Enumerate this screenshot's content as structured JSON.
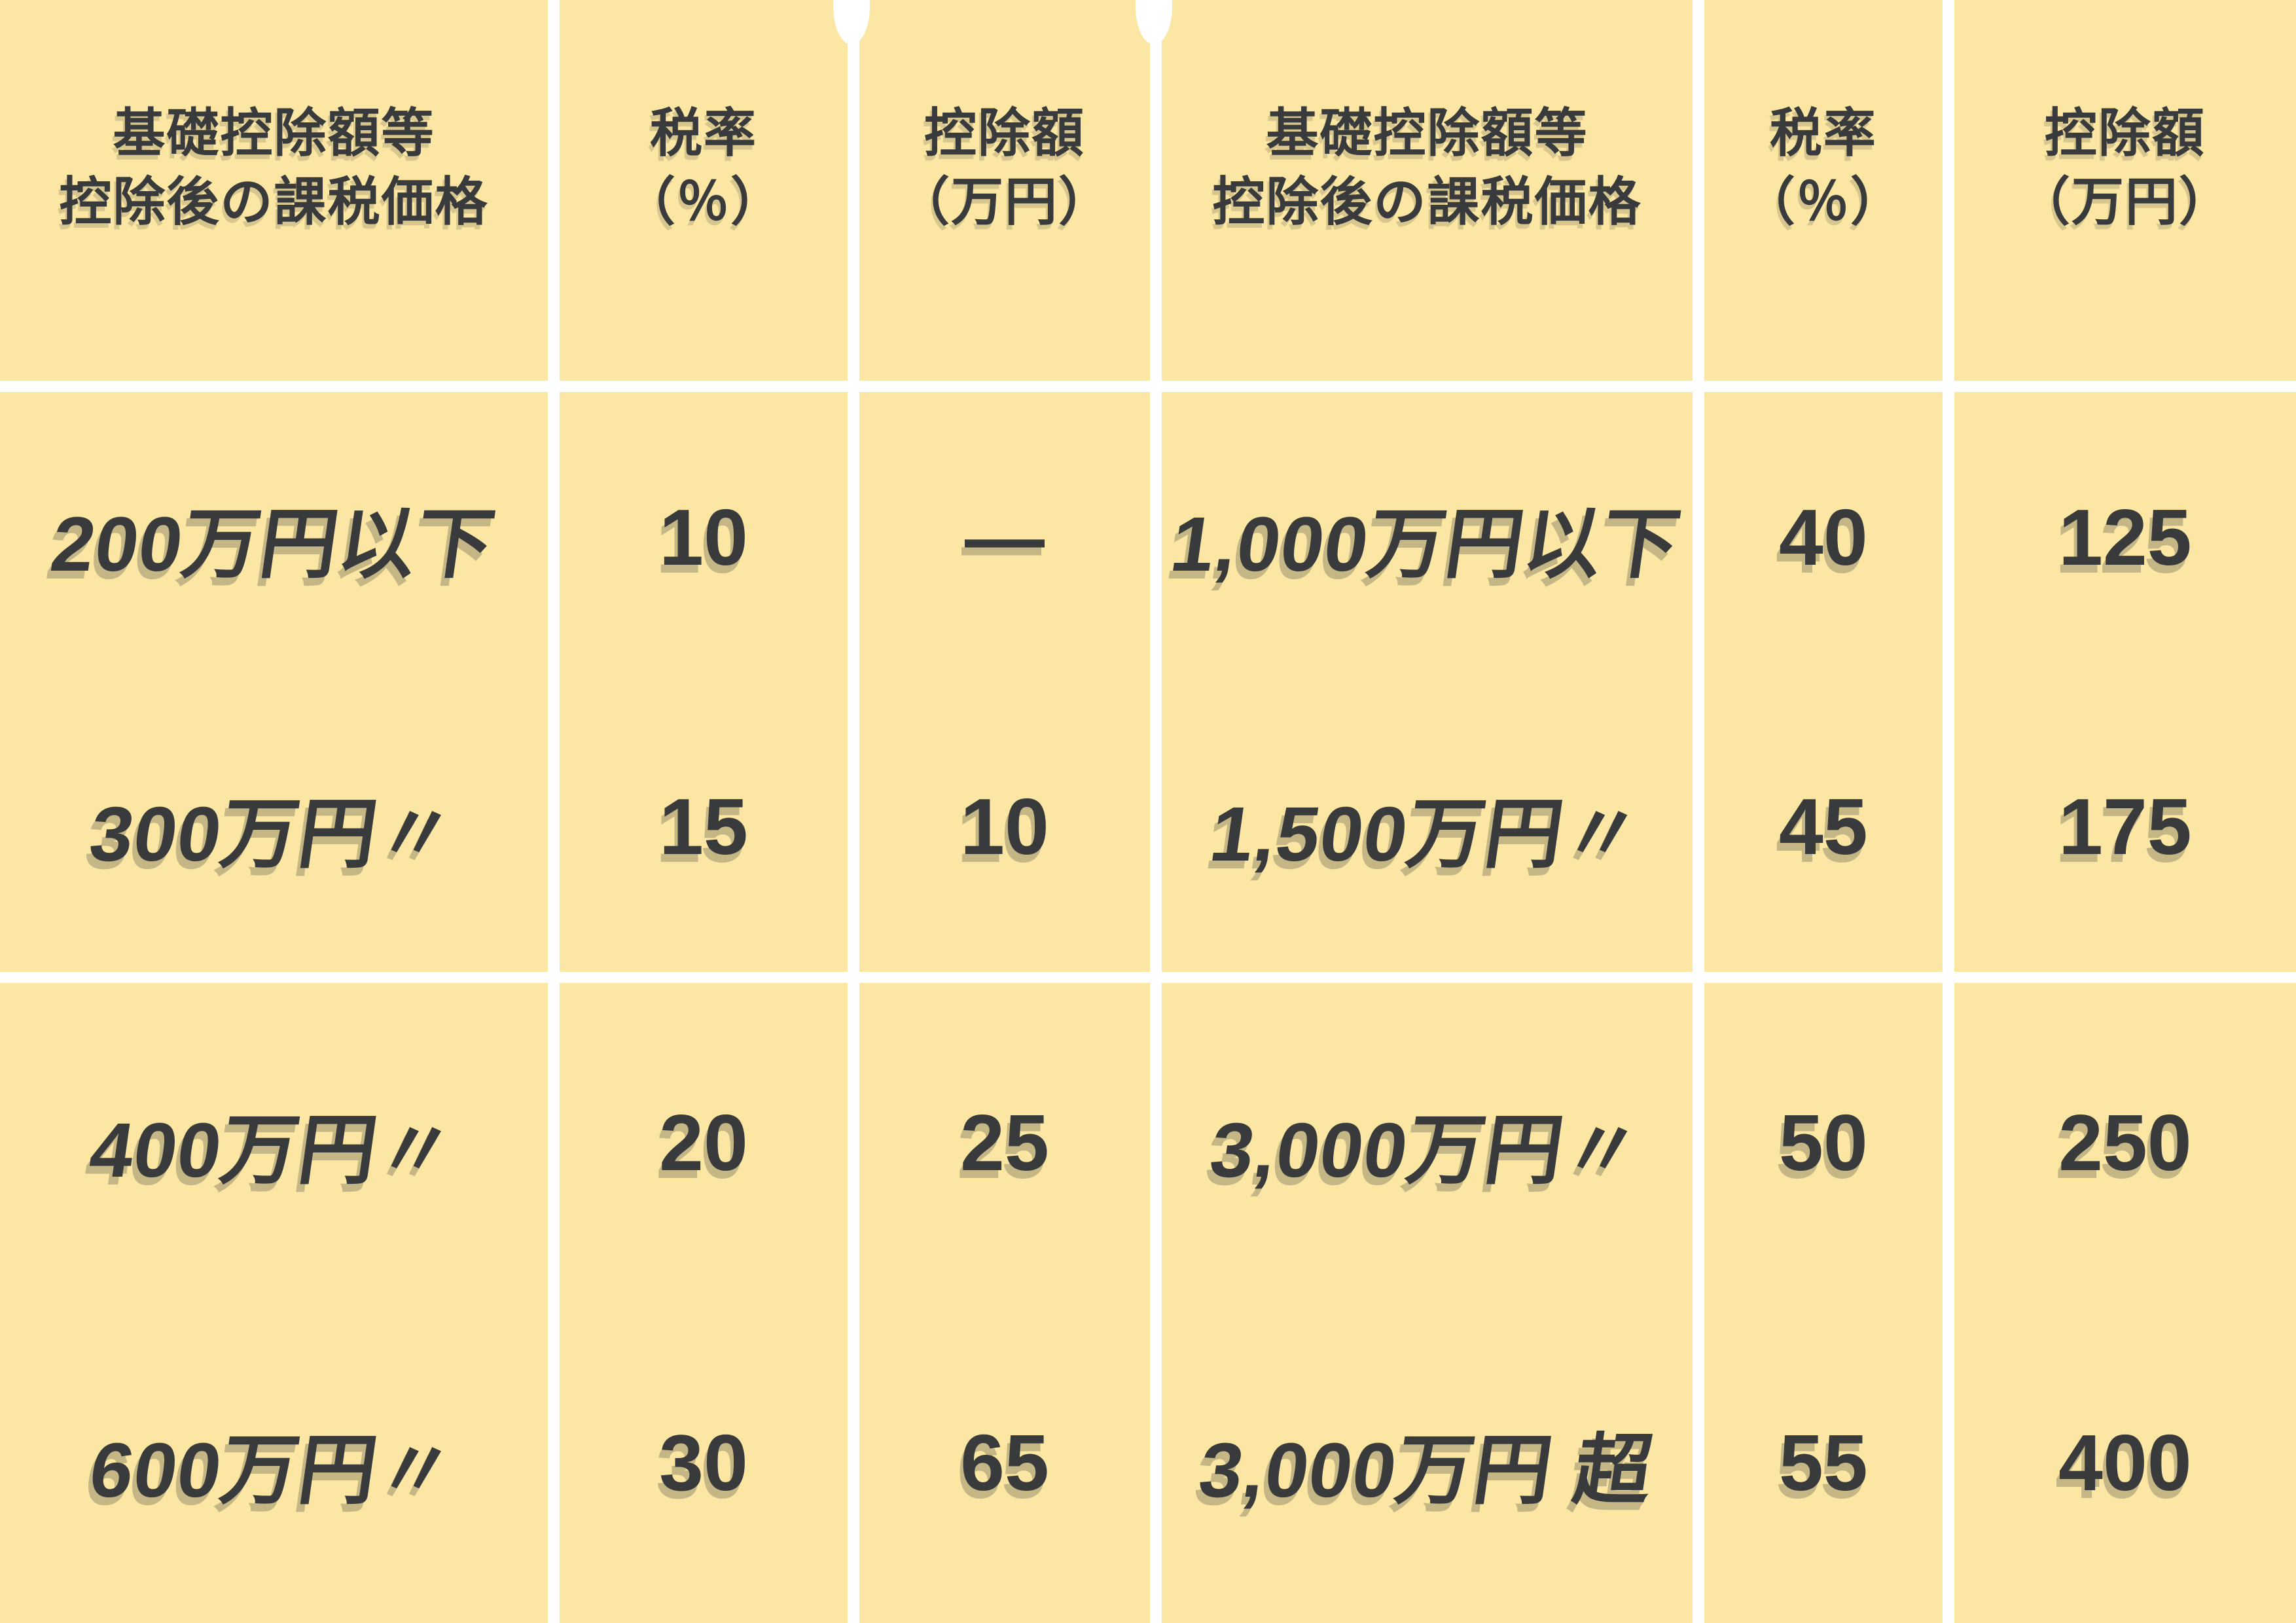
{
  "colors": {
    "cell_bg": "#FBE7A3",
    "text_dark": "#393A3C",
    "divider_white": "#FFFFFF"
  },
  "headers": [
    {
      "line1": "基礎控除額等",
      "line2": "控除後の課税価格"
    },
    {
      "line1": "税率",
      "line2": "（％）"
    },
    {
      "line1": "控除額",
      "line2": "（万円）"
    }
  ],
  "left_rows": [
    {
      "price": "200万円以下",
      "rate": "10",
      "deduction": "—"
    },
    {
      "price": "300万円〃",
      "rate": "15",
      "deduction": "10"
    },
    {
      "price": "400万円〃",
      "rate": "20",
      "deduction": "25"
    },
    {
      "price": "600万円〃",
      "rate": "30",
      "deduction": "65"
    }
  ],
  "right_rows": [
    {
      "price": "1,000万円以下",
      "rate": "40",
      "deduction": "125"
    },
    {
      "price": "1,500万円〃",
      "rate": "45",
      "deduction": "175"
    },
    {
      "price": "3,000万円〃",
      "rate": "50",
      "deduction": "250"
    },
    {
      "price": "3,000万円 超",
      "rate": "55",
      "deduction": "400"
    }
  ],
  "chart_data": {
    "type": "table",
    "columns": [
      "基礎控除額等控除後の課税価格",
      "税率（％）",
      "控除額（万円）",
      "基礎控除額等控除後の課税価格",
      "税率（％）",
      "控除額（万円）"
    ],
    "rows": [
      [
        "200万円以下",
        10,
        null,
        "1,000万円以下",
        40,
        125
      ],
      [
        "300万円〃",
        15,
        10,
        "1,500万円〃",
        45,
        175
      ],
      [
        "400万円〃",
        20,
        25,
        "3,000万円〃",
        50,
        250
      ],
      [
        "600万円〃",
        30,
        65,
        "3,000万円 超",
        55,
        400
      ]
    ],
    "notes": "Two side-by-side 3-column tax bracket tables; dash (—) means no deduction; 〃 is ditto mark meaning 以下 (or less)."
  }
}
